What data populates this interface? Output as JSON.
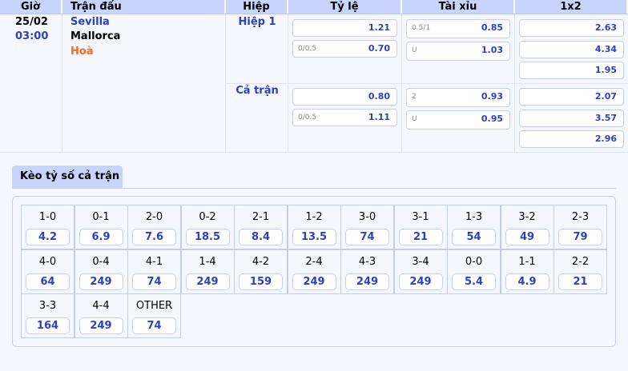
{
  "header": {
    "time": "Giờ",
    "match": "Trận đấu",
    "half": "Hiệp",
    "handicap": "Tỷ lệ",
    "overunder": "Tài xỉu",
    "x12": "1x2"
  },
  "match": {
    "date": "25/02",
    "time": "03:00",
    "home": "Sevilla",
    "away": "Mallorca",
    "draw": "Hoà"
  },
  "periods": [
    {
      "label": "Hiệp 1",
      "handicap": [
        {
          "line": "",
          "odds": "1.21"
        },
        {
          "line": "0/0.5",
          "odds": "0.70"
        }
      ],
      "overunder": [
        {
          "line": "0.5/1",
          "odds": "0.85"
        },
        {
          "line": "U",
          "odds": "1.03"
        }
      ],
      "x12": [
        "2.63",
        "4.34",
        "1.95"
      ]
    },
    {
      "label": "Cả trận",
      "handicap": [
        {
          "line": "",
          "odds": "0.80"
        },
        {
          "line": "0/0.5",
          "odds": "1.11"
        }
      ],
      "overunder": [
        {
          "line": "2",
          "odds": "0.93"
        },
        {
          "line": "U",
          "odds": "0.95"
        }
      ],
      "x12": [
        "2.07",
        "3.57",
        "2.96"
      ]
    }
  ],
  "score_tab": "Kèo tỷ số cả trận",
  "scores": [
    {
      "s": "1-0",
      "o": "4.2"
    },
    {
      "s": "0-1",
      "o": "6.9"
    },
    {
      "s": "2-0",
      "o": "7.6"
    },
    {
      "s": "0-2",
      "o": "18.5"
    },
    {
      "s": "2-1",
      "o": "8.4"
    },
    {
      "s": "1-2",
      "o": "13.5"
    },
    {
      "s": "3-0",
      "o": "74"
    },
    {
      "s": "3-1",
      "o": "21"
    },
    {
      "s": "1-3",
      "o": "54"
    },
    {
      "s": "3-2",
      "o": "49"
    },
    {
      "s": "2-3",
      "o": "79"
    },
    {
      "s": "4-0",
      "o": "64"
    },
    {
      "s": "0-4",
      "o": "249"
    },
    {
      "s": "4-1",
      "o": "74"
    },
    {
      "s": "1-4",
      "o": "249"
    },
    {
      "s": "4-2",
      "o": "159"
    },
    {
      "s": "2-4",
      "o": "249"
    },
    {
      "s": "4-3",
      "o": "249"
    },
    {
      "s": "3-4",
      "o": "249"
    },
    {
      "s": "0-0",
      "o": "5.4"
    },
    {
      "s": "1-1",
      "o": "4.9"
    },
    {
      "s": "2-2",
      "o": "21"
    },
    {
      "s": "3-3",
      "o": "164"
    },
    {
      "s": "4-4",
      "o": "249"
    },
    {
      "s": "OTHER",
      "o": "74"
    }
  ],
  "colors": {
    "header": "#c8d4fb",
    "accent": "#2e3fbf",
    "draw": "#ff6a13"
  }
}
